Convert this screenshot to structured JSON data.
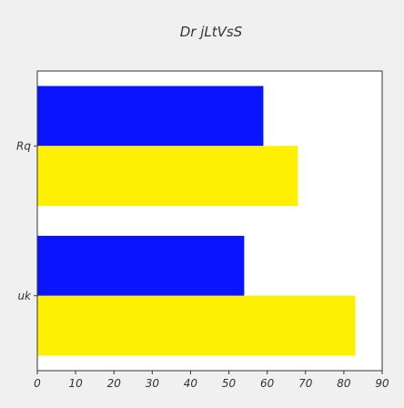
{
  "chart_data": {
    "type": "bar",
    "orientation": "horizontal",
    "title": "Dr jLtVsS",
    "categories": [
      "Rq",
      "uk"
    ],
    "series": [
      {
        "color": "#0a14ff",
        "values": [
          59,
          54
        ]
      },
      {
        "color": "#ffef00",
        "values": [
          68,
          83
        ]
      }
    ],
    "xlim": [
      0,
      90
    ],
    "xticks": [
      0,
      10,
      20,
      30,
      40,
      50,
      60,
      70,
      80,
      90
    ],
    "xlabel": "",
    "ylabel": "",
    "grid": false,
    "legend": "none",
    "colors": {
      "background": "#f0f0f0",
      "plot_background": "#ffffff",
      "axis": "#333333"
    }
  }
}
